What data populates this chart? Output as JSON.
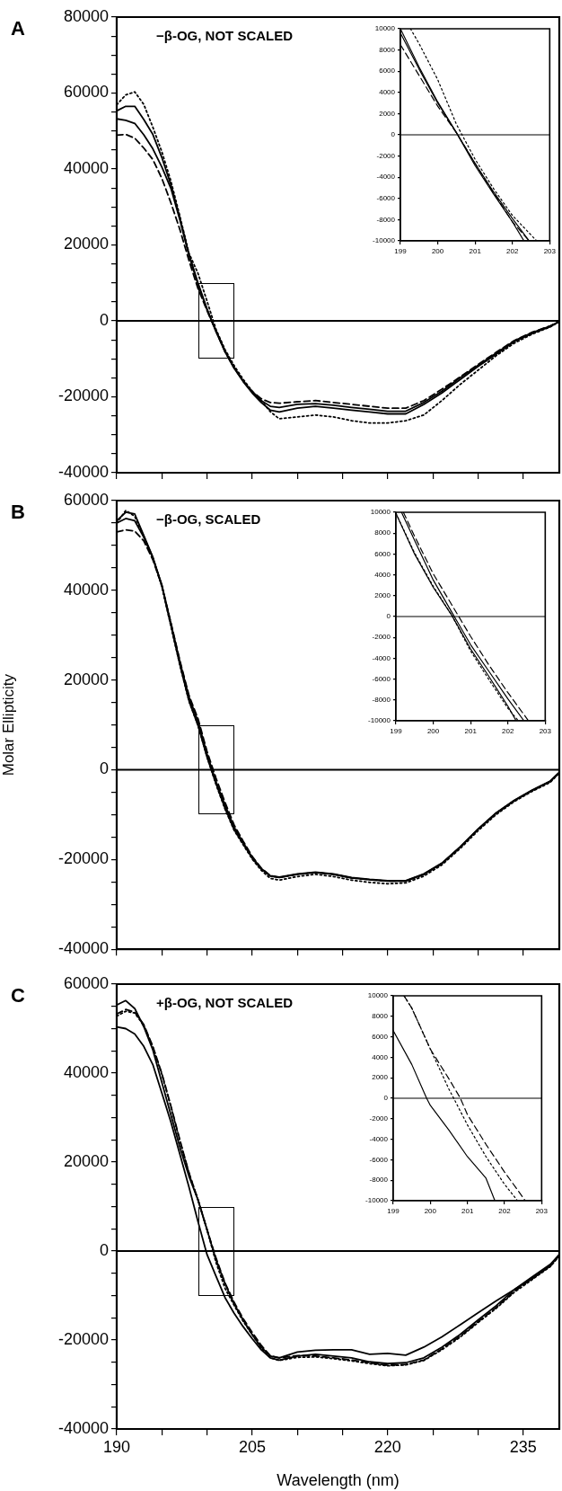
{
  "chart_data": [
    {
      "type": "line",
      "title": "A",
      "annotations": [
        "−β-OG, NOT SCALED"
      ],
      "x": [
        190,
        191,
        192,
        193,
        194,
        195,
        196,
        197,
        198,
        199,
        200,
        201,
        202,
        203,
        204,
        205,
        206,
        207,
        208,
        210,
        212,
        214,
        216,
        218,
        220,
        222,
        224,
        226,
        228,
        230,
        232,
        234,
        236,
        238,
        239
      ],
      "series": [
        {
          "color": "#000000",
          "line_style": "solid",
          "values": [
            55300,
            56500,
            56500,
            53000,
            49100,
            43000,
            35800,
            27000,
            17500,
            10000,
            3100,
            -2900,
            -8200,
            -12500,
            -16000,
            -19000,
            -21500,
            -23500,
            -24000,
            -23000,
            -22500,
            -23000,
            -23500,
            -24000,
            -24500,
            -24500,
            -22000,
            -19000,
            -15500,
            -12000,
            -8800,
            -5500,
            -3300,
            -1500,
            -200
          ]
        },
        {
          "color": "#000000",
          "line_style": "solid",
          "values": [
            53200,
            52800,
            52000,
            49000,
            45300,
            40500,
            34900,
            26500,
            17300,
            9600,
            3000,
            -2700,
            -7900,
            -12300,
            -15800,
            -18800,
            -21000,
            -22500,
            -22800,
            -22000,
            -21800,
            -22200,
            -22800,
            -23300,
            -23800,
            -23800,
            -21500,
            -18500,
            -15000,
            -11700,
            -8500,
            -5300,
            -3100,
            -1400,
            -200
          ]
        },
        {
          "color": "#000000",
          "line_style": "dashed",
          "values": [
            48900,
            49100,
            48100,
            45500,
            42500,
            37500,
            31100,
            24000,
            15900,
            8500,
            2700,
            -2700,
            -8200,
            -12400,
            -15800,
            -18600,
            -20500,
            -21500,
            -21700,
            -21300,
            -21000,
            -21500,
            -22000,
            -22500,
            -23000,
            -23000,
            -21000,
            -18000,
            -14800,
            -11500,
            -8300,
            -5200,
            -3000,
            -1300,
            -200
          ]
        },
        {
          "color": "#000000",
          "line_style": "dotted",
          "values": [
            56900,
            59500,
            60300,
            57000,
            51000,
            44500,
            36800,
            27500,
            17800,
            12500,
            5200,
            -2300,
            -7600,
            -11800,
            -15400,
            -18500,
            -21000,
            -23900,
            -25800,
            -25300,
            -24800,
            -25300,
            -26300,
            -26900,
            -26900,
            -26300,
            -24800,
            -21000,
            -16800,
            -13000,
            -9200,
            -5900,
            -3500,
            -1600,
            -200
          ]
        }
      ],
      "xlim": [
        190,
        239
      ],
      "xticks": [
        {
          "value": 190,
          "label": null
        },
        {
          "value": 195,
          "label": null
        },
        {
          "value": 200,
          "label": null
        },
        {
          "value": 205,
          "label": null
        },
        {
          "value": 210,
          "label": null
        },
        {
          "value": 215,
          "label": null
        },
        {
          "value": 220,
          "label": null
        },
        {
          "value": 225,
          "label": null
        },
        {
          "value": 230,
          "label": null
        },
        {
          "value": 235,
          "label": null
        }
      ],
      "ylim": [
        -40000,
        80000
      ],
      "yticks": [
        -40000,
        {
          "value": -35000,
          "label": null
        },
        {
          "value": -30000,
          "label": null
        },
        {
          "value": -25000,
          "label": null
        },
        -20000,
        {
          "value": -15000,
          "label": null
        },
        {
          "value": -10000,
          "label": null
        },
        {
          "value": -5000,
          "label": null
        },
        0,
        {
          "value": 5000,
          "label": null
        },
        {
          "value": 10000,
          "label": null
        },
        {
          "value": 15000,
          "label": null
        },
        20000,
        {
          "value": 25000,
          "label": null
        },
        {
          "value": 30000,
          "label": null
        },
        {
          "value": 35000,
          "label": null
        },
        40000,
        {
          "value": 45000,
          "label": null
        },
        {
          "value": 50000,
          "label": null
        },
        {
          "value": 55000,
          "label": null
        },
        60000,
        {
          "value": 65000,
          "label": null
        },
        {
          "value": 70000,
          "label": null
        },
        {
          "value": 75000,
          "label": null
        },
        80000
      ],
      "tick_labels": "y",
      "ref_lines": [
        {
          "axis": "y",
          "value": 0
        }
      ]
    },
    {
      "type": "line",
      "series": [
        {
          "color": "#000000",
          "line_style": "solid",
          "x": [
            199,
            199.5,
            200,
            200.5,
            201,
            201.5,
            202,
            202.31
          ],
          "values": [
            10000,
            6400,
            3100,
            200,
            -2900,
            -5600,
            -8200,
            -10000
          ]
        },
        {
          "color": "#000000",
          "line_style": "solid",
          "x": [
            199,
            199.5,
            200,
            200.5,
            201,
            201.5,
            202,
            202.45
          ],
          "values": [
            9600,
            6200,
            3000,
            200,
            -2700,
            -5400,
            -7900,
            -10000
          ]
        },
        {
          "color": "#000000",
          "line_style": "dashed",
          "x": [
            199,
            199.5,
            200,
            200.5,
            201,
            201.5,
            202,
            202.45
          ],
          "values": [
            8500,
            5600,
            2700,
            200,
            -2700,
            -5500,
            -8200,
            -10000
          ]
        },
        {
          "color": "#000000",
          "line_style": "dotted",
          "x": [
            199.27,
            199.5,
            200,
            200.5,
            201,
            201.5,
            202,
            202.65
          ],
          "values": [
            10000,
            8600,
            5200,
            1000,
            -2300,
            -5100,
            -7600,
            -10000
          ]
        }
      ],
      "xlim": [
        199,
        203
      ],
      "xticks": [
        199,
        200,
        201,
        202,
        203
      ],
      "ylim": [
        -10000,
        10000
      ],
      "yticks": [
        -10000,
        -8000,
        -6000,
        -4000,
        -2000,
        0,
        2000,
        4000,
        6000,
        8000,
        10000
      ],
      "ref_lines": [
        {
          "axis": "y",
          "value": 0
        }
      ]
    },
    {
      "type": "line",
      "title": "B",
      "annotations": [
        "−β-OG, SCALED"
      ],
      "ylabel": "Molar Ellipticity",
      "x": [
        190,
        191,
        192,
        193,
        194,
        195,
        196,
        197,
        198,
        199,
        200,
        201,
        202,
        203,
        204,
        205,
        206,
        207,
        208,
        210,
        212,
        214,
        216,
        218,
        220,
        222,
        224,
        226,
        228,
        230,
        232,
        234,
        236,
        238,
        239
      ],
      "series": [
        {
          "color": "#000000",
          "line_style": "solid",
          "values": [
            55500,
            57400,
            57000,
            52200,
            47400,
            41000,
            32200,
            23400,
            15400,
            9900,
            2800,
            -3100,
            -8600,
            -13300,
            -16500,
            -19700,
            -22100,
            -23700,
            -24000,
            -23300,
            -22900,
            -23300,
            -24100,
            -24500,
            -24800,
            -24800,
            -23300,
            -20900,
            -17300,
            -13300,
            -9700,
            -6900,
            -4600,
            -2600,
            -600
          ]
        },
        {
          "color": "#000000",
          "line_style": "solid",
          "values": [
            55000,
            56000,
            55500,
            51800,
            47200,
            41200,
            32600,
            24000,
            16200,
            10800,
            3500,
            -2700,
            -7900,
            -12800,
            -16200,
            -19500,
            -22000,
            -23600,
            -23900,
            -23200,
            -22800,
            -23200,
            -24000,
            -24400,
            -24700,
            -24700,
            -23200,
            -20800,
            -17200,
            -13200,
            -9600,
            -6800,
            -4500,
            -2500,
            -600
          ]
        },
        {
          "color": "#000000",
          "line_style": "dashed",
          "values": [
            53000,
            53500,
            53200,
            51000,
            46800,
            41000,
            32800,
            24300,
            16600,
            11400,
            4100,
            -1900,
            -7300,
            -12300,
            -15900,
            -19300,
            -21900,
            -23600,
            -24000,
            -23300,
            -22900,
            -23300,
            -24100,
            -24500,
            -24800,
            -24800,
            -23300,
            -20900,
            -17300,
            -13300,
            -9700,
            -6900,
            -4600,
            -2600,
            -600
          ]
        },
        {
          "color": "#000000",
          "line_style": "dotted",
          "values": [
            55000,
            57800,
            56500,
            52000,
            47300,
            40800,
            32000,
            23300,
            15300,
            9900,
            2900,
            -3300,
            -8800,
            -13500,
            -16700,
            -19900,
            -22400,
            -24200,
            -24600,
            -23800,
            -23300,
            -23800,
            -24600,
            -25100,
            -25400,
            -25200,
            -23700,
            -21200,
            -17600,
            -13600,
            -10000,
            -7100,
            -4800,
            -2800,
            -700
          ]
        }
      ],
      "xlim": [
        190,
        239
      ],
      "xticks": [
        {
          "value": 190,
          "label": null
        },
        {
          "value": 195,
          "label": null
        },
        {
          "value": 200,
          "label": null
        },
        {
          "value": 205,
          "label": null
        },
        {
          "value": 210,
          "label": null
        },
        {
          "value": 215,
          "label": null
        },
        {
          "value": 220,
          "label": null
        },
        {
          "value": 225,
          "label": null
        },
        {
          "value": 230,
          "label": null
        },
        {
          "value": 235,
          "label": null
        }
      ],
      "ylim": [
        -40000,
        60000
      ],
      "yticks": [
        -40000,
        {
          "value": -35000,
          "label": null
        },
        {
          "value": -30000,
          "label": null
        },
        {
          "value": -25000,
          "label": null
        },
        -20000,
        {
          "value": -15000,
          "label": null
        },
        {
          "value": -10000,
          "label": null
        },
        {
          "value": -5000,
          "label": null
        },
        0,
        {
          "value": 5000,
          "label": null
        },
        {
          "value": 10000,
          "label": null
        },
        {
          "value": 15000,
          "label": null
        },
        20000,
        {
          "value": 25000,
          "label": null
        },
        {
          "value": 30000,
          "label": null
        },
        {
          "value": 35000,
          "label": null
        },
        40000,
        {
          "value": 45000,
          "label": null
        },
        {
          "value": 50000,
          "label": null
        },
        {
          "value": 55000,
          "label": null
        },
        60000
      ],
      "tick_labels": "y",
      "ref_lines": [
        {
          "axis": "y",
          "value": 0
        }
      ]
    },
    {
      "type": "line",
      "series": [
        {
          "color": "#000000",
          "line_style": "solid",
          "x": [
            199,
            199.5,
            200,
            200.5,
            201,
            201.5,
            202,
            202.22
          ],
          "values": [
            9900,
            6000,
            2800,
            100,
            -3100,
            -5800,
            -8600,
            -10000
          ]
        },
        {
          "color": "#000000",
          "line_style": "solid",
          "x": [
            199.15,
            199.5,
            200,
            200.5,
            201,
            201.5,
            202,
            202.43
          ],
          "values": [
            10000,
            7300,
            3500,
            400,
            -2700,
            -5300,
            -7900,
            -10000
          ]
        },
        {
          "color": "#000000",
          "line_style": "dashed",
          "x": [
            199.2,
            199.5,
            200,
            200.5,
            201,
            201.5,
            202,
            202.55
          ],
          "values": [
            10000,
            7700,
            4100,
            1100,
            -1900,
            -4700,
            -7300,
            -10000
          ]
        },
        {
          "color": "#000000",
          "line_style": "dotted",
          "x": [
            199,
            199.5,
            200,
            200.5,
            201,
            201.5,
            202,
            202.28
          ],
          "values": [
            9900,
            6100,
            2900,
            100,
            -3300,
            -6100,
            -8800,
            -10000
          ]
        }
      ],
      "xlim": [
        199,
        203
      ],
      "xticks": [
        199,
        200,
        201,
        202,
        203
      ],
      "ylim": [
        -10000,
        10000
      ],
      "yticks": [
        -10000,
        -8000,
        -6000,
        -4000,
        -2000,
        0,
        2000,
        4000,
        6000,
        8000,
        10000
      ],
      "ref_lines": [
        {
          "axis": "y",
          "value": 0
        }
      ]
    },
    {
      "type": "line",
      "title": "C",
      "annotations": [
        "+β-OG, NOT SCALED"
      ],
      "xlabel": "Wavelength (nm)",
      "x": [
        190,
        191,
        192,
        193,
        194,
        195,
        196,
        197,
        198,
        199,
        200,
        201,
        202,
        203,
        204,
        205,
        206,
        207,
        208,
        210,
        212,
        214,
        216,
        218,
        220,
        222,
        224,
        226,
        228,
        230,
        232,
        234,
        236,
        238,
        239
      ],
      "series": [
        {
          "color": "#000000",
          "line_style": "solid",
          "values": [
            55300,
            56300,
            54500,
            50400,
            45200,
            37900,
            30600,
            23300,
            16800,
            11500,
            4800,
            -2000,
            -7400,
            -11900,
            -15500,
            -18800,
            -21600,
            -23600,
            -24000,
            -22700,
            -22300,
            -22200,
            -22200,
            -23200,
            -23000,
            -23400,
            -21600,
            -19300,
            -16600,
            -13900,
            -11200,
            -8700,
            -6200,
            -3300,
            -900
          ]
        },
        {
          "color": "#000000",
          "line_style": "solid",
          "values": [
            50400,
            50000,
            48800,
            46000,
            41900,
            35500,
            29000,
            21700,
            14400,
            6600,
            -800,
            -5700,
            -10500,
            -14000,
            -17000,
            -19700,
            -22200,
            -24000,
            -24500,
            -23600,
            -23200,
            -23600,
            -24000,
            -24900,
            -25300,
            -25100,
            -24000,
            -21600,
            -18800,
            -15500,
            -12300,
            -8700,
            -5800,
            -3000,
            -800
          ]
        },
        {
          "color": "#000000",
          "line_style": "dashed",
          "values": [
            53300,
            54300,
            53700,
            50900,
            46000,
            39900,
            32600,
            24900,
            17600,
            11500,
            4800,
            -1600,
            -7200,
            -11500,
            -15200,
            -18300,
            -21200,
            -23500,
            -24000,
            -23500,
            -23600,
            -24000,
            -24500,
            -25100,
            -25700,
            -25500,
            -24500,
            -22000,
            -19200,
            -15900,
            -12700,
            -9100,
            -6200,
            -3400,
            -1000
          ]
        },
        {
          "color": "#000000",
          "line_style": "dotted",
          "values": [
            52800,
            53900,
            53500,
            50700,
            45800,
            39700,
            32400,
            24700,
            17500,
            11500,
            4800,
            -2600,
            -8400,
            -12200,
            -15800,
            -18800,
            -21800,
            -24000,
            -24600,
            -23900,
            -23800,
            -24200,
            -24700,
            -25300,
            -25800,
            -25600,
            -24600,
            -22200,
            -19400,
            -16100,
            -12900,
            -9300,
            -6400,
            -3500,
            -1100
          ]
        }
      ],
      "xlim": [
        190,
        239
      ],
      "xticks": [
        190,
        {
          "value": 195,
          "label": null
        },
        {
          "value": 200,
          "label": null
        },
        205,
        {
          "value": 210,
          "label": null
        },
        {
          "value": 215,
          "label": null
        },
        220,
        {
          "value": 225,
          "label": null
        },
        {
          "value": 230,
          "label": null
        },
        235
      ],
      "ylim": [
        -40000,
        60000
      ],
      "yticks": [
        -40000,
        {
          "value": -35000,
          "label": null
        },
        {
          "value": -30000,
          "label": null
        },
        {
          "value": -25000,
          "label": null
        },
        -20000,
        {
          "value": -15000,
          "label": null
        },
        {
          "value": -10000,
          "label": null
        },
        {
          "value": -5000,
          "label": null
        },
        0,
        {
          "value": 5000,
          "label": null
        },
        {
          "value": 10000,
          "label": null
        },
        {
          "value": 15000,
          "label": null
        },
        20000,
        {
          "value": 25000,
          "label": null
        },
        {
          "value": 30000,
          "label": null
        },
        {
          "value": 35000,
          "label": null
        },
        40000,
        {
          "value": 45000,
          "label": null
        },
        {
          "value": 50000,
          "label": null
        },
        {
          "value": 55000,
          "label": null
        },
        60000
      ],
      "ref_lines": [
        {
          "axis": "y",
          "value": 0
        }
      ]
    },
    {
      "type": "line",
      "series": [
        {
          "color": "#000000",
          "line_style": "solid",
          "x": [
            199,
            199.5,
            199.9,
            200,
            200.5,
            201,
            201.5,
            201.74
          ],
          "values": [
            6600,
            3300,
            0,
            -700,
            -3100,
            -5700,
            -7800,
            -10000
          ]
        },
        {
          "color": "#000000",
          "line_style": "dotted",
          "x": [
            199.29,
            199.5,
            200,
            200.5,
            200.63,
            201,
            201.5,
            202,
            202.35
          ],
          "values": [
            10000,
            8800,
            4800,
            900,
            0,
            -2600,
            -5700,
            -8400,
            -10000
          ]
        },
        {
          "color": "#000000",
          "line_style": "dashed",
          "x": [
            199.29,
            199.5,
            200,
            200.5,
            200.81,
            201,
            201.5,
            202,
            202.56
          ],
          "values": [
            10000,
            8800,
            4800,
            1900,
            0,
            -1600,
            -4500,
            -7200,
            -10000
          ]
        }
      ],
      "xlim": [
        199,
        203
      ],
      "xticks": [
        199,
        200,
        201,
        202,
        203
      ],
      "ylim": [
        -10000,
        10000
      ],
      "yticks": [
        -10000,
        -8000,
        -6000,
        -4000,
        -2000,
        0,
        2000,
        4000,
        6000,
        8000,
        10000
      ],
      "ref_lines": [
        {
          "axis": "y",
          "value": 0
        }
      ]
    }
  ]
}
